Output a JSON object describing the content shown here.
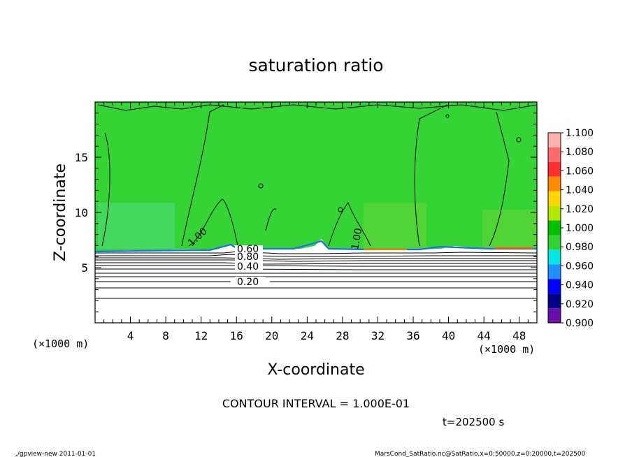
{
  "chart_data": {
    "type": "heatmap",
    "title": "saturation ratio",
    "xlabel": "X-coordinate",
    "ylabel": "Z-coordinate",
    "x_unit": "(×1000 m)",
    "y_unit": "(×1000 m)",
    "xlim": [
      0,
      50
    ],
    "ylim": [
      0,
      20
    ],
    "xticks": [
      "4",
      "8",
      "12",
      "16",
      "20",
      "24",
      "28",
      "32",
      "36",
      "40",
      "44",
      "48"
    ],
    "yticks": [
      "5",
      "10",
      "15"
    ],
    "colorbar": {
      "labels": [
        "0.900",
        "0.920",
        "0.940",
        "0.960",
        "0.980",
        "1.000",
        "1.020",
        "1.040",
        "1.060",
        "1.080",
        "1.100"
      ],
      "colors": [
        "#6a0dad",
        "#00008b",
        "#0000ff",
        "#1e90ff",
        "#00e5e5",
        "#32d232",
        "#00c000",
        "#b4e600",
        "#ffd700",
        "#ff8c00",
        "#ff3030",
        "#ff6a6a",
        "#ffb0b0"
      ]
    },
    "contour_labels": [
      "1.00",
      "1.00",
      "0.80",
      "0.60",
      "0.40",
      "0.20"
    ],
    "contour_interval_text": "CONTOUR INTERVAL = 1.000E-01",
    "time_text": "t=202500 s"
  },
  "footer": {
    "left": "./gpview-new  2011-01-01",
    "right": "MarsCond_SatRatio.nc@SatRatio,x=0:50000,z=0:20000,t=202500"
  }
}
